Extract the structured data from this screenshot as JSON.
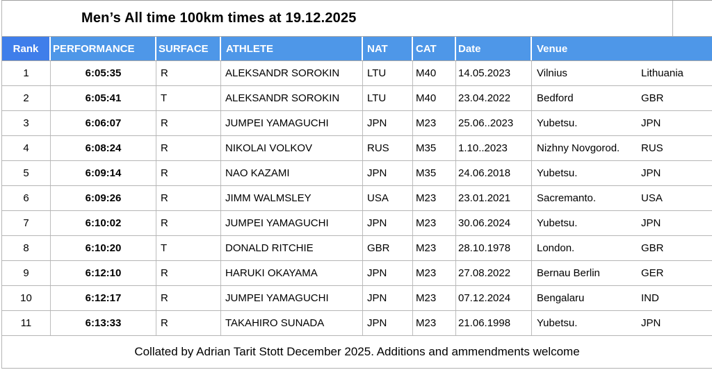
{
  "title": "Men’s All time 100km times at 19.12.2025",
  "columns": [
    "Rank",
    "PERFORMANCE",
    "SURFACE",
    "ATHLETE",
    "NAT",
    "CAT",
    "Date",
    "Venue"
  ],
  "rows": [
    {
      "rank": "1",
      "performance": "6:05:35",
      "surface": "R",
      "athlete": "ALEKSANDR SOROKIN",
      "nat": "LTU",
      "cat": "M40",
      "date": "14.05.2023",
      "venue_city": "Vilnius",
      "venue_country": "Lithuania"
    },
    {
      "rank": "2",
      "performance": "6:05:41",
      "surface": "T",
      "athlete": "ALEKSANDR SOROKIN",
      "nat": "LTU",
      "cat": "M40",
      "date": "23.04.2022",
      "venue_city": "Bedford",
      "venue_country": "GBR"
    },
    {
      "rank": "3",
      "performance": "6:06:07",
      "surface": "R",
      "athlete": "JUMPEI YAMAGUCHI",
      "nat": "JPN",
      "cat": "M23",
      "date": "25.06..2023",
      "venue_city": "Yubetsu.",
      "venue_country": "JPN"
    },
    {
      "rank": "4",
      "performance": "6:08:24",
      "surface": "R",
      "athlete": "NIKOLAI VOLKOV",
      "nat": "RUS",
      "cat": "M35",
      "date": "1.10..2023",
      "venue_city": "Nizhny Novgorod.",
      "venue_country": "RUS"
    },
    {
      "rank": "5",
      "performance": "6:09:14",
      "surface": "R",
      "athlete": "NAO KAZAMI",
      "nat": "JPN",
      "cat": "M35",
      "date": "24.06.2018",
      "venue_city": "Yubetsu.",
      "venue_country": "JPN"
    },
    {
      "rank": "6",
      "performance": "6:09:26",
      "surface": "R",
      "athlete": "JIMM WALMSLEY",
      "nat": "USA",
      "cat": "M23",
      "date": "23.01.2021",
      "venue_city": "Sacremanto.",
      "venue_country": "USA"
    },
    {
      "rank": "7",
      "performance": "6:10:02",
      "surface": "R",
      "athlete": "JUMPEI YAMAGUCHI",
      "nat": "JPN",
      "cat": "M23",
      "date": "30.06.2024",
      "venue_city": "Yubetsu.",
      "venue_country": "JPN"
    },
    {
      "rank": "8",
      "performance": "6:10:20",
      "surface": "T",
      "athlete": "DONALD RITCHIE",
      "nat": "GBR",
      "cat": "M23",
      "date": "28.10.1978",
      "venue_city": "London.",
      "venue_country": "GBR"
    },
    {
      "rank": "9",
      "performance": "6:12:10",
      "surface": "R",
      "athlete": "HARUKI OKAYAMA",
      "nat": "JPN",
      "cat": "M23",
      "date": "27.08.2022",
      "venue_city": "Bernau Berlin",
      "venue_country": "GER"
    },
    {
      "rank": "10",
      "performance": "6:12:17",
      "surface": "R",
      "athlete": "JUMPEI YAMAGUCHI",
      "nat": "JPN",
      "cat": "M23",
      "date": "07.12.2024",
      "venue_city": "Bengalaru",
      "venue_country": "IND"
    },
    {
      "rank": "11",
      "performance": "6:13:33",
      "surface": "R",
      "athlete": "TAKAHIRO SUNADA",
      "nat": "JPN",
      "cat": "M23",
      "date": "21.06.1998",
      "venue_city": "Yubetsu.",
      "venue_country": "JPN"
    }
  ],
  "footer": "Collated by Adrian Tarit Stott December 2025. Additions and ammendments welcome",
  "colors": {
    "header_rank_bg": "#3f7eea",
    "header_bg": "#4e97e8",
    "header_text": "#ffffff",
    "grid_line": "#b5b5b5",
    "body_text": "#000000",
    "background": "#ffffff"
  }
}
